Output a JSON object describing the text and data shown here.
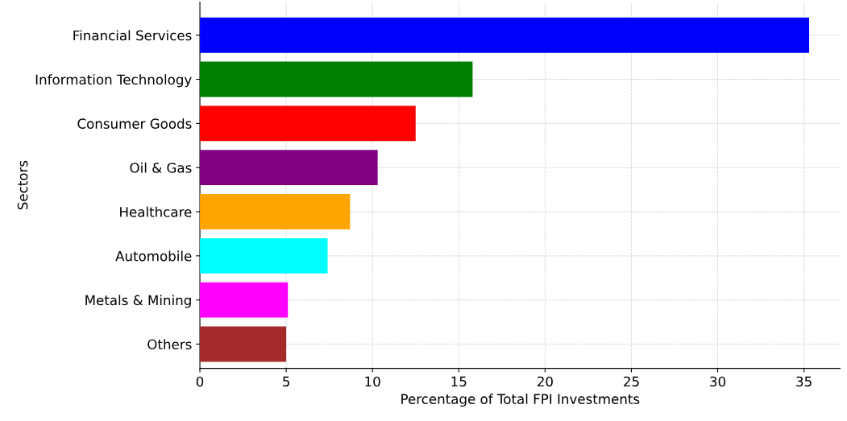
{
  "chart_data": {
    "type": "bar",
    "orientation": "horizontal",
    "xlabel": "Percentage of Total FPI Investments",
    "ylabel": "Sectors",
    "categories": [
      "Financial Services",
      "Information Technology",
      "Consumer Goods",
      "Oil & Gas",
      "Healthcare",
      "Automobile",
      "Metals & Mining",
      "Others"
    ],
    "values": [
      35.3,
      15.8,
      12.5,
      10.3,
      8.7,
      7.4,
      5.1,
      5.0
    ],
    "colors": [
      "#0000ff",
      "#008000",
      "#ff0000",
      "#800080",
      "#ffa500",
      "#00ffff",
      "#ff00ff",
      "#a52a2a"
    ],
    "xlim": [
      0,
      37.1
    ],
    "xticks": [
      0,
      5,
      10,
      15,
      20,
      25,
      30,
      35
    ],
    "grid": true,
    "line_style": "dashed"
  }
}
